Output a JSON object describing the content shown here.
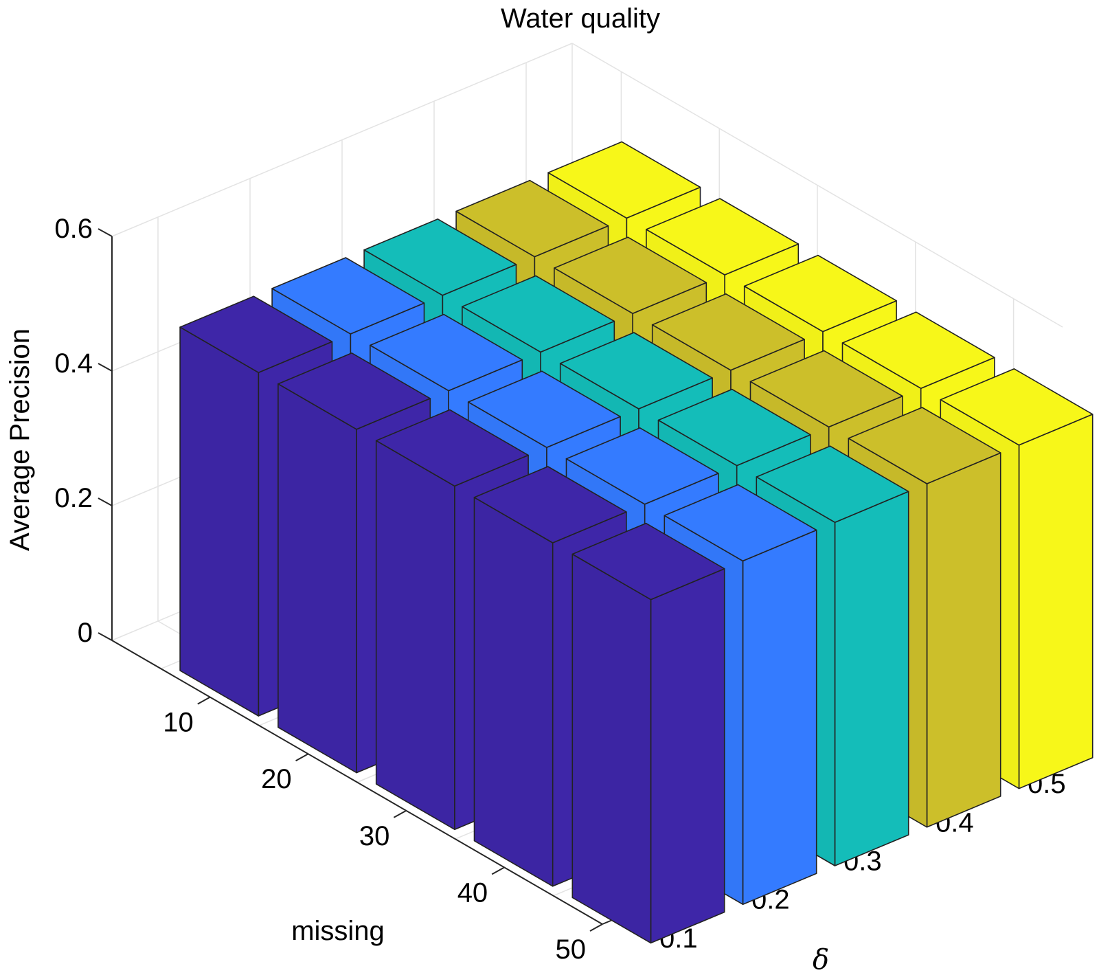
{
  "chart_data": {
    "type": "bar3d",
    "title": "Water quality",
    "zlabel": "Average Precision",
    "xlabel": "missing",
    "ylabel": "δ",
    "x_categories": [
      "10",
      "20",
      "30",
      "40",
      "50"
    ],
    "y_categories": [
      "0.1",
      "0.2",
      "0.3",
      "0.4",
      "0.5"
    ],
    "z_ticks": [
      "0",
      "0.2",
      "0.4",
      "0.6"
    ],
    "zlim": [
      0,
      0.6
    ],
    "grid": true,
    "series": [
      {
        "values": [
          0.51,
          0.51,
          0.51,
          0.51,
          0.51
        ],
        "color": "#3E26A8"
      },
      {
        "values": [
          0.51,
          0.51,
          0.51,
          0.51,
          0.51
        ],
        "color": "#347BFF"
      },
      {
        "values": [
          0.51,
          0.51,
          0.51,
          0.51,
          0.51
        ],
        "color": "#14BDB9"
      },
      {
        "values": [
          0.51,
          0.51,
          0.51,
          0.51,
          0.51
        ],
        "color": "#CCBF2A"
      },
      {
        "values": [
          0.51,
          0.51,
          0.51,
          0.51,
          0.51
        ],
        "color": "#F7F719"
      }
    ]
  }
}
